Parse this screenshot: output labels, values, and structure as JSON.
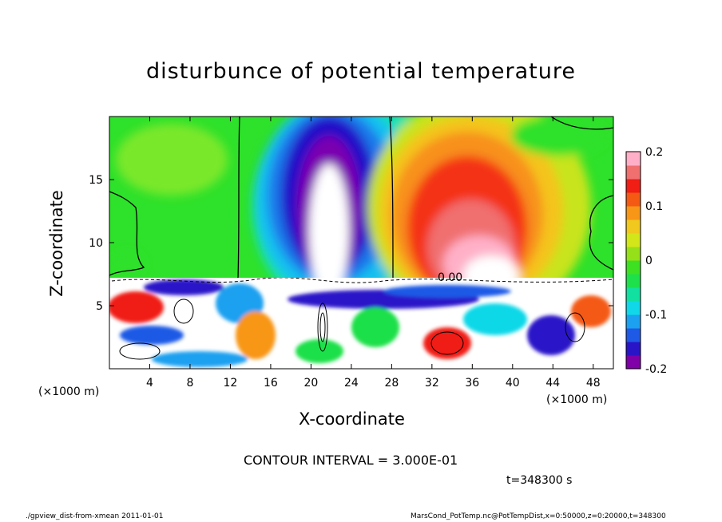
{
  "chart_data": {
    "type": "heatmap",
    "title": "disturbunce of potential temperature",
    "xlabel": "X-coordinate",
    "ylabel": "Z-coordinate",
    "x_unit_left": "(×1000 m)",
    "x_unit_right": "(×1000 m)",
    "xlim": [
      0,
      50
    ],
    "ylim": [
      0,
      20
    ],
    "x_ticks": [
      4,
      8,
      12,
      16,
      20,
      24,
      28,
      32,
      36,
      40,
      44,
      48
    ],
    "y_ticks": [
      5,
      10,
      15
    ],
    "colorbar": {
      "range": [
        -0.2,
        0.2
      ],
      "labels": [
        "0.2",
        "0.1",
        "0",
        "-0.1",
        "-0.2"
      ],
      "label_values": [
        0.2,
        0.1,
        0,
        -0.1,
        -0.2
      ],
      "colors": [
        "#7f00a8",
        "#2a14c8",
        "#1e5ae6",
        "#1ca0f0",
        "#10d8e8",
        "#12e0a0",
        "#1ee04a",
        "#3ee022",
        "#96e01a",
        "#d2e61a",
        "#f0c81e",
        "#f89618",
        "#f45a14",
        "#f01e14",
        "#f07070",
        "#ffb0c8"
      ]
    },
    "contour_label": "0.00",
    "contour_interval": "CONTOUR INTERVAL = 3.000E-01",
    "time": "t=348300 s",
    "footer_left": "./gpview_dist-from-xmean  2011-01-01",
    "footer_right": "MarsCond_PotTemp.nc@PotTempDist,x=0:50000,z=0:20000,t=348300"
  }
}
